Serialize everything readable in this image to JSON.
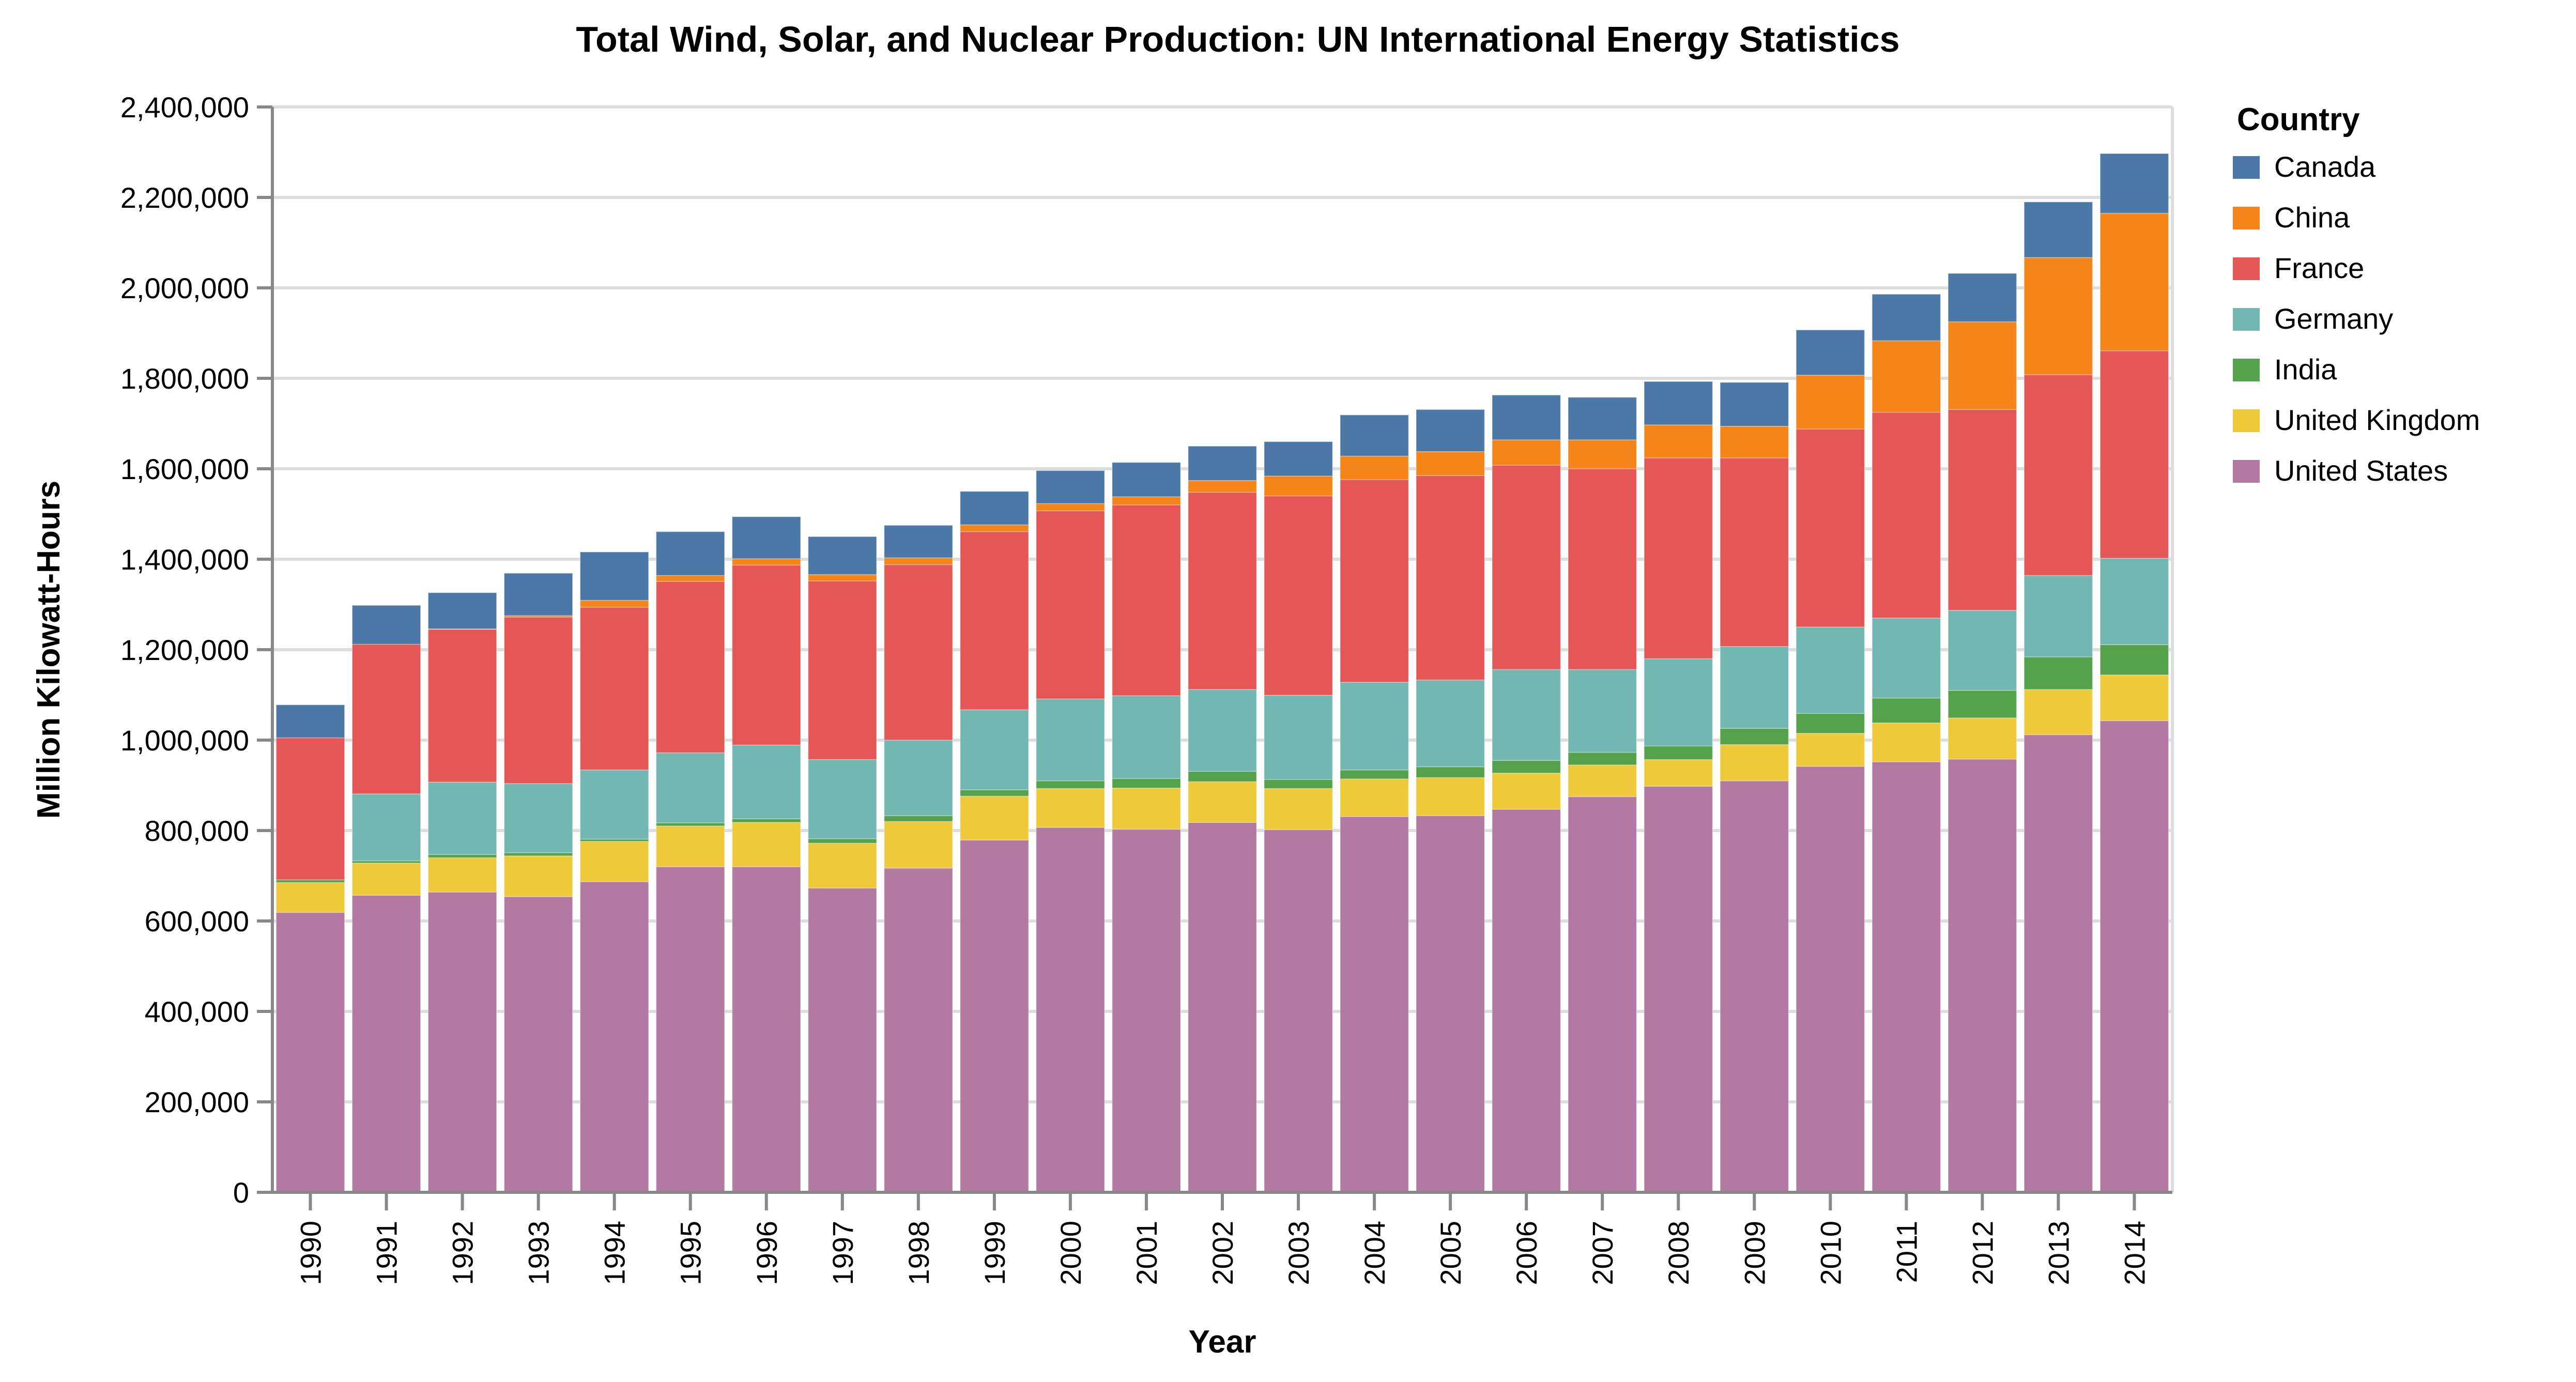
{
  "chart_data": {
    "type": "bar",
    "stacked": true,
    "title": "Total Wind, Solar, and Nuclear Production: UN International Energy Statistics",
    "xlabel": "Year",
    "ylabel": "Million Kilowatt-Hours",
    "ylim": [
      0,
      2400000
    ],
    "yticks": [
      0,
      200000,
      400000,
      600000,
      800000,
      1000000,
      1200000,
      1400000,
      1600000,
      1800000,
      2000000,
      2200000,
      2400000
    ],
    "ytick_labels": [
      "0",
      "200,000",
      "400,000",
      "600,000",
      "800,000",
      "1,000,000",
      "1,200,000",
      "1,400,000",
      "1,600,000",
      "1,800,000",
      "2,000,000",
      "2,200,000",
      "2,400,000"
    ],
    "grid": true,
    "legend": {
      "title": "Country",
      "position": "right"
    },
    "categories": [
      "1990",
      "1991",
      "1992",
      "1993",
      "1994",
      "1995",
      "1996",
      "1997",
      "1998",
      "1999",
      "2000",
      "2001",
      "2002",
      "2003",
      "2004",
      "2005",
      "2006",
      "2007",
      "2008",
      "2009",
      "2010",
      "2011",
      "2012",
      "2013",
      "2014"
    ],
    "series": [
      {
        "name": "Canada",
        "color": "#4c78a8",
        "values": [
          73000,
          86000,
          80000,
          94000,
          107000,
          97000,
          93000,
          84000,
          72000,
          74000,
          73000,
          76000,
          76000,
          76000,
          91000,
          93000,
          99000,
          94000,
          96000,
          97000,
          100000,
          103000,
          107000,
          123000,
          132000
        ]
      },
      {
        "name": "China",
        "color": "#f58518",
        "values": [
          0,
          0,
          1000,
          3000,
          15000,
          13000,
          14000,
          14000,
          15000,
          15000,
          16000,
          18000,
          26000,
          44000,
          52000,
          53000,
          56000,
          64000,
          73000,
          70000,
          119000,
          158000,
          194000,
          259000,
          304000
        ]
      },
      {
        "name": "France",
        "color": "#e45756",
        "values": [
          314000,
          331000,
          338000,
          368000,
          360000,
          379000,
          398000,
          395000,
          388000,
          394000,
          416000,
          422000,
          436000,
          441000,
          448000,
          452000,
          452000,
          444000,
          444000,
          417000,
          438000,
          455000,
          444000,
          444000,
          459000
        ]
      },
      {
        "name": "Germany",
        "color": "#72b7b2",
        "values": [
          0,
          148000,
          160000,
          153000,
          153000,
          155000,
          163000,
          175000,
          167000,
          177000,
          181000,
          183000,
          181000,
          186000,
          194000,
          192000,
          201000,
          183000,
          193000,
          181000,
          191000,
          177000,
          177000,
          180000,
          191000
        ]
      },
      {
        "name": "India",
        "color": "#54a24b",
        "values": [
          6000,
          5000,
          7000,
          7000,
          5000,
          7000,
          8000,
          10000,
          13000,
          14000,
          17000,
          21000,
          23000,
          20000,
          20000,
          24000,
          28000,
          28000,
          30000,
          36000,
          44000,
          55000,
          61000,
          72000,
          67000
        ]
      },
      {
        "name": "United Kingdom",
        "color": "#eeca3b",
        "values": [
          66000,
          71000,
          76000,
          90000,
          89000,
          90000,
          98000,
          99000,
          103000,
          97000,
          86000,
          91000,
          90000,
          91000,
          83000,
          84000,
          80000,
          70000,
          59000,
          80000,
          73000,
          86000,
          91000,
          100000,
          101000
        ]
      },
      {
        "name": "United States",
        "color": "#b279a2",
        "values": [
          619000,
          657000,
          664000,
          654000,
          687000,
          720000,
          720000,
          673000,
          717000,
          779000,
          807000,
          803000,
          818000,
          802000,
          831000,
          833000,
          847000,
          875000,
          898000,
          910000,
          942000,
          952000,
          958000,
          1012000,
          1043000
        ]
      }
    ],
    "stack_order": [
      "United States",
      "United Kingdom",
      "India",
      "Germany",
      "France",
      "China",
      "Canada"
    ]
  }
}
